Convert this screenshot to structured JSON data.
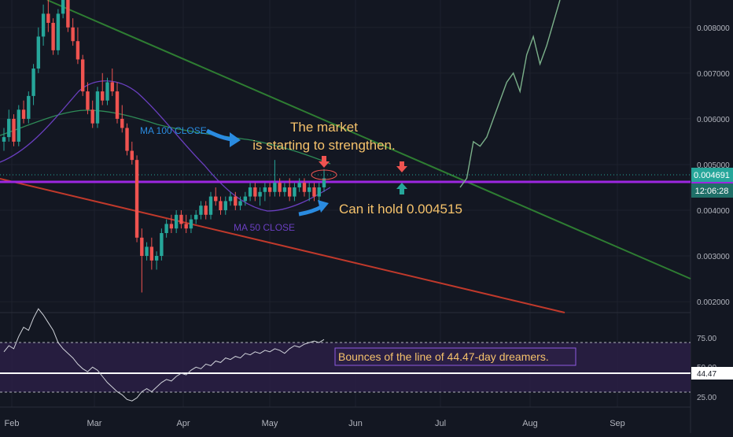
{
  "chart_data": {
    "type": "candlestick",
    "price_axis": {
      "ticks": [
        "0.008000",
        "0.007000",
        "0.006000",
        "0.005000",
        "0.004000",
        "0.003000",
        "0.002000"
      ],
      "ylim": [
        0.00176,
        0.0086
      ]
    },
    "time_axis": {
      "ticks": [
        "Feb",
        "Mar",
        "Apr",
        "May",
        "Jun",
        "Jul",
        "Aug",
        "Sep"
      ]
    },
    "current_price_label": "0.004691",
    "countdown_label": "12:06:28",
    "current_price": 0.004691,
    "support_level": 0.004515,
    "candles_ohlc": [
      [
        0.0055,
        0.0058,
        0.0053,
        0.0056
      ],
      [
        0.0056,
        0.0062,
        0.0055,
        0.006
      ],
      [
        0.006,
        0.0061,
        0.0054,
        0.0055
      ],
      [
        0.0055,
        0.0063,
        0.0054,
        0.0062
      ],
      [
        0.0062,
        0.0064,
        0.0059,
        0.006
      ],
      [
        0.006,
        0.0066,
        0.0059,
        0.0065
      ],
      [
        0.0065,
        0.0072,
        0.0063,
        0.0071
      ],
      [
        0.0071,
        0.008,
        0.007,
        0.0078
      ],
      [
        0.0078,
        0.0085,
        0.0076,
        0.0083
      ],
      [
        0.0083,
        0.0086,
        0.0079,
        0.0081
      ],
      [
        0.0081,
        0.0082,
        0.0074,
        0.0075
      ],
      [
        0.0075,
        0.0084,
        0.0074,
        0.0083
      ],
      [
        0.0083,
        0.0088,
        0.0082,
        0.0087
      ],
      [
        0.0087,
        0.0088,
        0.0079,
        0.008
      ],
      [
        0.008,
        0.0082,
        0.0076,
        0.0077
      ],
      [
        0.0077,
        0.008,
        0.0072,
        0.0073
      ],
      [
        0.0073,
        0.0074,
        0.0065,
        0.0066
      ],
      [
        0.0066,
        0.0068,
        0.0061,
        0.0062
      ],
      [
        0.0062,
        0.0064,
        0.0058,
        0.0059
      ],
      [
        0.0059,
        0.0067,
        0.0058,
        0.0066
      ],
      [
        0.0066,
        0.007,
        0.0063,
        0.0064
      ],
      [
        0.0064,
        0.0069,
        0.0063,
        0.0068
      ],
      [
        0.0068,
        0.0071,
        0.0065,
        0.0066
      ],
      [
        0.0066,
        0.0068,
        0.0059,
        0.006
      ],
      [
        0.006,
        0.0063,
        0.0057,
        0.0058
      ],
      [
        0.0058,
        0.0059,
        0.0052,
        0.0053
      ],
      [
        0.0053,
        0.0055,
        0.005,
        0.0051
      ],
      [
        0.0051,
        0.0052,
        0.0033,
        0.0034
      ],
      [
        0.0034,
        0.0036,
        0.0022,
        0.003
      ],
      [
        0.003,
        0.0033,
        0.0029,
        0.0032
      ],
      [
        0.0032,
        0.0034,
        0.0027,
        0.0029
      ],
      [
        0.0029,
        0.0031,
        0.0027,
        0.003
      ],
      [
        0.003,
        0.0036,
        0.0029,
        0.0035
      ],
      [
        0.0035,
        0.0038,
        0.0034,
        0.0037
      ],
      [
        0.0037,
        0.0039,
        0.0035,
        0.0036
      ],
      [
        0.0036,
        0.004,
        0.0035,
        0.0039
      ],
      [
        0.0039,
        0.004,
        0.0036,
        0.0037
      ],
      [
        0.0037,
        0.0039,
        0.0035,
        0.0036
      ],
      [
        0.0036,
        0.0039,
        0.0035,
        0.0038
      ],
      [
        0.0038,
        0.004,
        0.0037,
        0.0039
      ],
      [
        0.0039,
        0.0042,
        0.0038,
        0.0041
      ],
      [
        0.0041,
        0.0042,
        0.0038,
        0.0039
      ],
      [
        0.0039,
        0.0044,
        0.0038,
        0.0043
      ],
      [
        0.0043,
        0.0045,
        0.0041,
        0.0042
      ],
      [
        0.0042,
        0.0043,
        0.0039,
        0.004
      ],
      [
        0.004,
        0.0043,
        0.0039,
        0.0042
      ],
      [
        0.0042,
        0.0044,
        0.0041,
        0.0043
      ],
      [
        0.0043,
        0.0044,
        0.004,
        0.0041
      ],
      [
        0.0041,
        0.0043,
        0.004,
        0.0042
      ],
      [
        0.0042,
        0.0044,
        0.0041,
        0.0043
      ],
      [
        0.0043,
        0.0046,
        0.0042,
        0.0045
      ],
      [
        0.0045,
        0.0046,
        0.0042,
        0.0043
      ],
      [
        0.0043,
        0.0045,
        0.0041,
        0.0044
      ],
      [
        0.0044,
        0.0046,
        0.0042,
        0.0045
      ],
      [
        0.0045,
        0.0046,
        0.0043,
        0.0044
      ],
      [
        0.0044,
        0.0051,
        0.0043,
        0.0046
      ],
      [
        0.0046,
        0.0047,
        0.0043,
        0.0044
      ],
      [
        0.0044,
        0.0046,
        0.0043,
        0.0045
      ],
      [
        0.0045,
        0.0047,
        0.0042,
        0.0043
      ],
      [
        0.0043,
        0.0046,
        0.0042,
        0.0045
      ],
      [
        0.0045,
        0.0047,
        0.0044,
        0.0046
      ],
      [
        0.0046,
        0.0047,
        0.0043,
        0.0044
      ],
      [
        0.0044,
        0.0046,
        0.0042,
        0.0045
      ],
      [
        0.0045,
        0.0046,
        0.0042,
        0.0043
      ],
      [
        0.0043,
        0.0046,
        0.0042,
        0.0045
      ],
      [
        0.0045,
        0.0049,
        0.0044,
        0.0047
      ]
    ],
    "projection_path": [
      [
        0.0045,
        0.0047
      ],
      [
        0.0047,
        0.0055
      ],
      [
        0.0055,
        0.0054
      ],
      [
        0.0054,
        0.0056
      ],
      [
        0.0056,
        0.006
      ],
      [
        0.006,
        0.0064
      ],
      [
        0.0064,
        0.0068
      ],
      [
        0.0068,
        0.007
      ],
      [
        0.007,
        0.0066
      ],
      [
        0.0066,
        0.0074
      ],
      [
        0.0074,
        0.0078
      ],
      [
        0.0078,
        0.0072
      ],
      [
        0.0072,
        0.0076
      ],
      [
        0.0076,
        0.0081
      ],
      [
        0.0081,
        0.0086
      ]
    ],
    "overlays": [
      {
        "name": "MA 100 CLOSE",
        "color": "#2e8b57"
      },
      {
        "name": "MA 50 CLOSE",
        "color": "#6a3fc0"
      }
    ],
    "annotations": {
      "ma100_label": "MA 100 CLOSE",
      "ma50_label": "MA 50 CLOSE",
      "market_line1": "The market",
      "market_line2": "is starting to strengthen.",
      "hold_text": "Can it hold 0.004515",
      "rsi_note": "Bounces of the line of 44.47-day dreamers."
    },
    "oscillator": {
      "ticks": [
        "75.00",
        "25.00"
      ],
      "value_label": "44.47",
      "upper_value_label": "50.00",
      "levels": {
        "upper": 70,
        "middle": 44.47,
        "lower": 30
      },
      "ylim": [
        20,
        80
      ],
      "values": [
        56,
        60,
        58,
        66,
        72,
        70,
        78,
        84,
        80,
        75,
        70,
        62,
        58,
        55,
        52,
        48,
        45,
        43,
        46,
        44,
        40,
        36,
        33,
        30,
        28,
        25,
        24,
        26,
        30,
        32,
        30,
        33,
        36,
        38,
        37,
        40,
        42,
        41,
        44,
        46,
        45,
        48,
        47,
        50,
        49,
        52,
        51,
        53,
        52,
        55,
        54,
        56,
        55,
        57,
        56,
        58,
        57,
        55,
        58,
        60,
        59,
        61,
        62,
        63,
        62,
        64
      ]
    },
    "colors": {
      "up": "#26a69a",
      "down": "#ef5350",
      "support": "#9c27e0",
      "downtrend_red": "#c0392b",
      "downtrend_green": "#2e7d32",
      "annotation_text": "#f5c26b",
      "arrow_blue": "#2a8be0",
      "projection": "#7bb08a"
    }
  }
}
